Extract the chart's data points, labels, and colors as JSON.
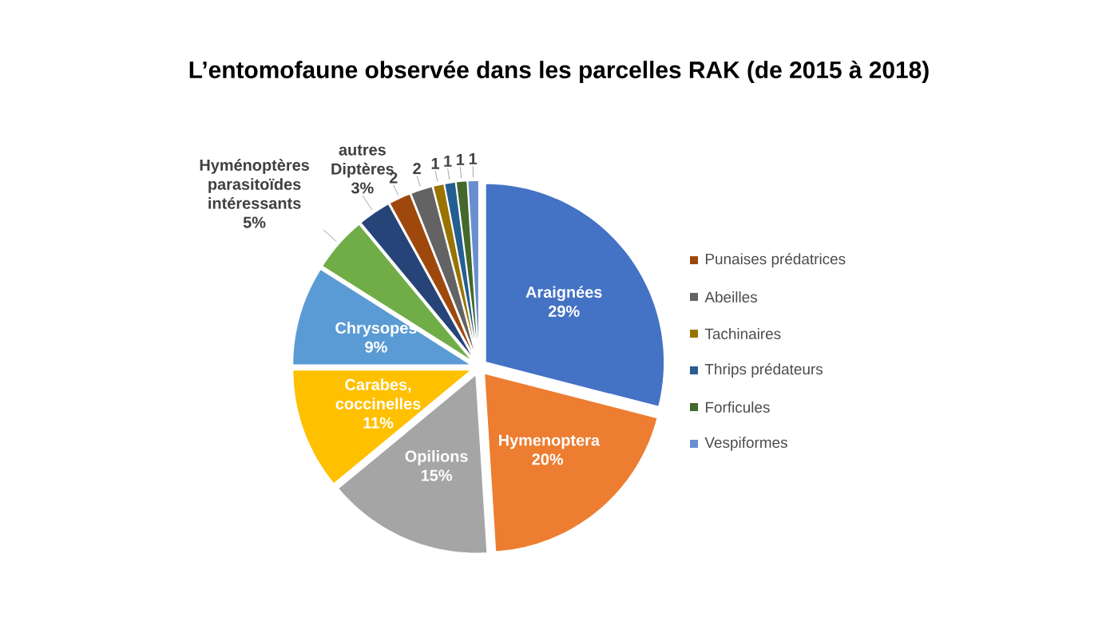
{
  "chart_data": {
    "type": "pie",
    "title": "L’entomofaune observée dans les parcelles RAK (de 2015 à 2018)",
    "categories": [
      "Araignées",
      "Hymenoptera",
      "Opilions",
      "Carabes, coccinelles",
      "Chrysopes",
      "Hyménoptères parasitoïdes intéressants",
      "autres Diptères",
      "Punaises prédatrices",
      "Abeilles",
      "Tachinaires",
      "Thrips prédateurs",
      "Forficules",
      "Vespiformes"
    ],
    "values": [
      29,
      20,
      15,
      11,
      9,
      5,
      3,
      2,
      2,
      1,
      1,
      1,
      1
    ],
    "value_labels": [
      "29%",
      "20%",
      "15%",
      "11%",
      "9%",
      "5%",
      "3%",
      "2",
      "2",
      "1",
      "1",
      "1",
      "1"
    ],
    "colors": [
      "#4472c4",
      "#ed7d31",
      "#a5a5a5",
      "#ffc000",
      "#5b9bd5",
      "#70ad47",
      "#264478",
      "#9e480e",
      "#636363",
      "#997300",
      "#255e91",
      "#43682b",
      "#698ed0"
    ],
    "legend": "right"
  }
}
